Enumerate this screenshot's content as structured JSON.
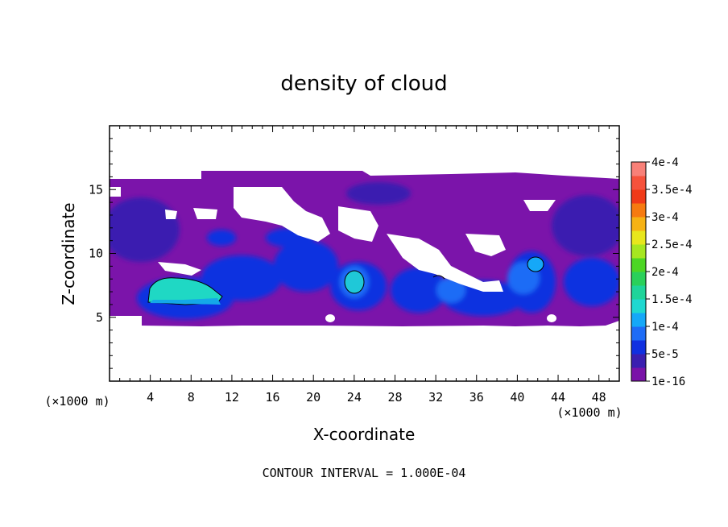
{
  "chart_data": {
    "type": "heatmap",
    "title": "density of cloud",
    "xlabel": "X-coordinate",
    "ylabel": "Z-coordinate",
    "x_unit": "(×1000 m)",
    "z_unit": "(×1000 m)",
    "xlim": [
      0,
      50
    ],
    "ylim": [
      0,
      20
    ],
    "x_ticks": [
      4,
      8,
      12,
      16,
      20,
      24,
      28,
      32,
      36,
      40,
      44,
      48
    ],
    "y_ticks": [
      5,
      10,
      15
    ],
    "footer": "CONTOUR INTERVAL = 1.000E-04",
    "colorbar": {
      "labels": [
        "1e-16",
        "5e-5",
        "1e-4",
        "1.5e-4",
        "2e-4",
        "2.5e-4",
        "3e-4",
        "3.5e-4",
        "4e-4"
      ],
      "colors": [
        "#7a13a8",
        "#3a1fb0",
        "#1030e0",
        "#1e6cf6",
        "#15a8f8",
        "#1fd8d0",
        "#1fd49a",
        "#2ad05a",
        "#4cd624",
        "#a6e620",
        "#e8e61c",
        "#f6b214",
        "#f67a10",
        "#f03a18",
        "#f6523c",
        "#f88078"
      ]
    },
    "contour_level": 0.0001,
    "cloud_features": [
      {
        "kind": "cloud-layer",
        "x": [
          1,
          50
        ],
        "z": [
          4.5,
          15.8
        ],
        "value": 1e-16
      },
      {
        "kind": "upper-layer",
        "x": [
          9,
          50
        ],
        "z": [
          13,
          16.3
        ],
        "value": 1e-16
      },
      {
        "kind": "core",
        "x": [
          3.5,
          11
        ],
        "z": [
          5.8,
          8.3
        ],
        "value": 0.00015
      },
      {
        "kind": "core",
        "x": [
          22.8,
          24.7
        ],
        "z": [
          7,
          8.6
        ],
        "value": 0.00013
      },
      {
        "kind": "core",
        "x": [
          40.8,
          42.3
        ],
        "z": [
          8.7,
          9.9
        ],
        "value": 0.00011
      }
    ]
  }
}
